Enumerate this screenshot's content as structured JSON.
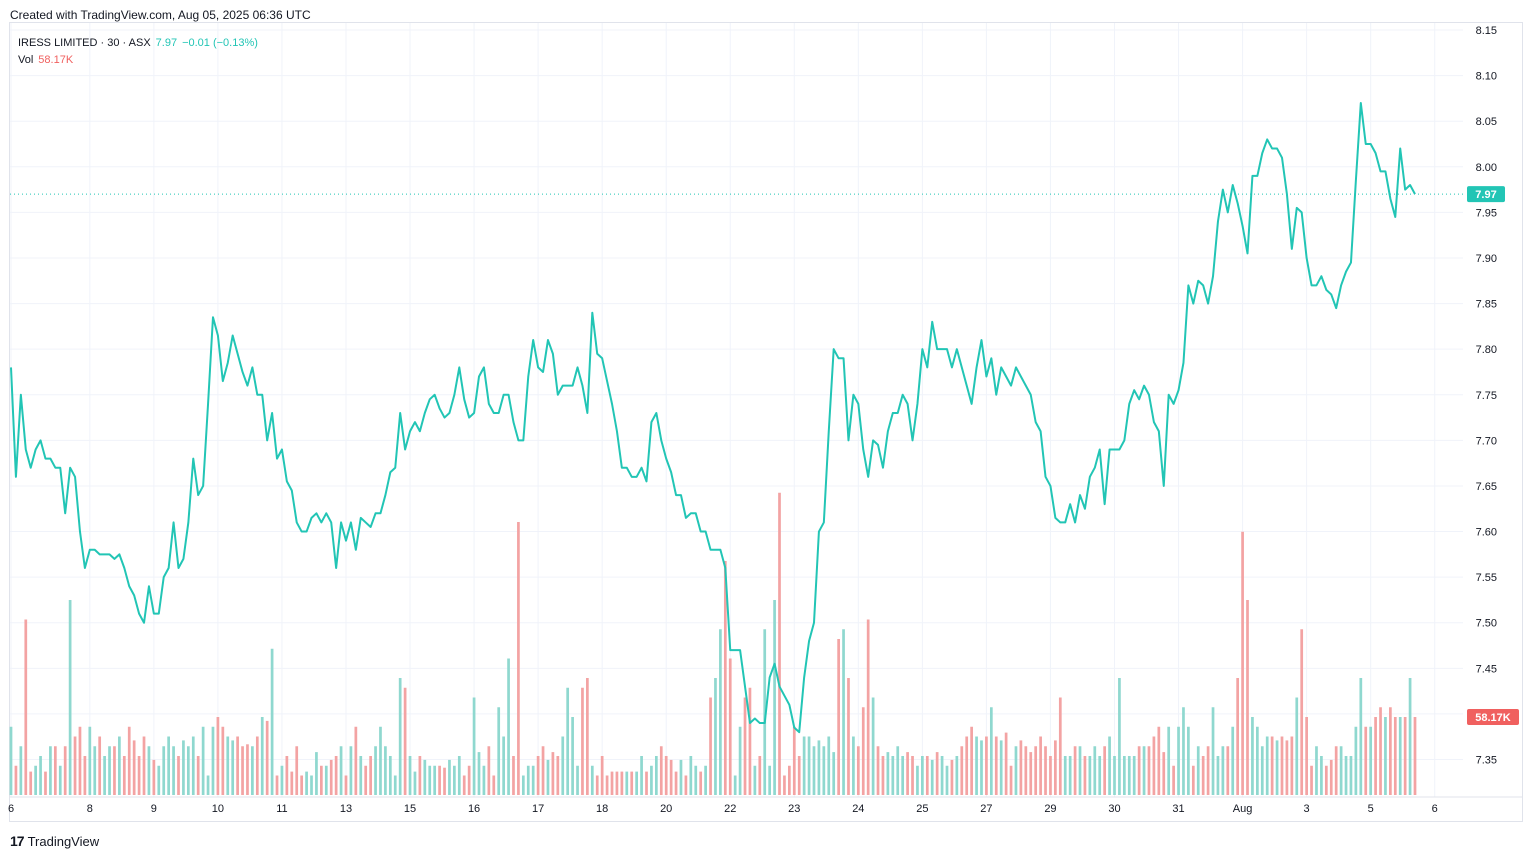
{
  "header": {
    "created_text": "Created with TradingView.com, Aug 05, 2025 06:36 UTC"
  },
  "legend": {
    "symbol": "IRESS LIMITED · 30 · ASX",
    "last": "7.97",
    "change": "−0.01 (−0.13%)",
    "vol_label": "Vol",
    "vol_value": "58.17K"
  },
  "footer": {
    "brand": "TradingView"
  },
  "colors": {
    "line": "#22c5b5",
    "vol_up": "#8fd8cf",
    "vol_down": "#f3a3a3",
    "grid": "#f0f3fa",
    "text": "#131722",
    "price_badge": "#22c5b5",
    "vol_badge": "#f0605f"
  },
  "chart_data": {
    "type": "line",
    "title": "",
    "xlabel": "",
    "ylabel": "",
    "grid": true,
    "y_axis_position": "right",
    "ylim": [
      7.31,
      8.15
    ],
    "yticks": [
      "8.15",
      "8.10",
      "8.05",
      "8.00",
      "7.95",
      "7.90",
      "7.85",
      "7.80",
      "7.75",
      "7.70",
      "7.65",
      "7.60",
      "7.55",
      "7.50",
      "7.45",
      "7.40",
      "7.35"
    ],
    "xticks": [
      {
        "label": "6",
        "i": 0
      },
      {
        "label": "8",
        "i": 16
      },
      {
        "label": "9",
        "i": 29
      },
      {
        "label": "10",
        "i": 42
      },
      {
        "label": "11",
        "i": 55
      },
      {
        "label": "13",
        "i": 68
      },
      {
        "label": "15",
        "i": 81
      },
      {
        "label": "16",
        "i": 94
      },
      {
        "label": "17",
        "i": 107
      },
      {
        "label": "18",
        "i": 120
      },
      {
        "label": "20",
        "i": 133
      },
      {
        "label": "22",
        "i": 146
      },
      {
        "label": "23",
        "i": 159
      },
      {
        "label": "24",
        "i": 172
      },
      {
        "label": "25",
        "i": 185
      },
      {
        "label": "27",
        "i": 198
      },
      {
        "label": "29",
        "i": 211
      },
      {
        "label": "30",
        "i": 224
      },
      {
        "label": "31",
        "i": 237
      },
      {
        "label": "Aug",
        "i": 250
      },
      {
        "label": "3",
        "i": 263
      },
      {
        "label": "5",
        "i": 276
      },
      {
        "label": "6",
        "i": 289
      }
    ],
    "last_price": 7.97,
    "last_price_label": "7.97",
    "last_volume_label": "58.17K",
    "vol_max": 100,
    "series": [
      {
        "kind": "price",
        "values": [
          7.78,
          7.66,
          7.75,
          7.69,
          7.67,
          7.69,
          7.7,
          7.68,
          7.68,
          7.67,
          7.67,
          7.62,
          7.67,
          7.66,
          7.6,
          7.56,
          7.58,
          7.58,
          7.575,
          7.575,
          7.575,
          7.57,
          7.575,
          7.56,
          7.54,
          7.53,
          7.51,
          7.5,
          7.54,
          7.51,
          7.51,
          7.55,
          7.56,
          7.61,
          7.56,
          7.57,
          7.61,
          7.68,
          7.64,
          7.65,
          7.74,
          7.835,
          7.815,
          7.765,
          7.785,
          7.815,
          7.795,
          7.775,
          7.76,
          7.78,
          7.75,
          7.75,
          7.7,
          7.73,
          7.68,
          7.69,
          7.655,
          7.645,
          7.61,
          7.6,
          7.6,
          7.615,
          7.62,
          7.61,
          7.62,
          7.61,
          7.56,
          7.61,
          7.59,
          7.61,
          7.58,
          7.615,
          7.61,
          7.605,
          7.62,
          7.62,
          7.64,
          7.665,
          7.67,
          7.73,
          7.69,
          7.71,
          7.72,
          7.71,
          7.73,
          7.745,
          7.75,
          7.735,
          7.725,
          7.73,
          7.75,
          7.78,
          7.745,
          7.725,
          7.73,
          7.77,
          7.78,
          7.74,
          7.73,
          7.73,
          7.75,
          7.75,
          7.72,
          7.7,
          7.7,
          7.77,
          7.81,
          7.78,
          7.775,
          7.81,
          7.795,
          7.75,
          7.76,
          7.76,
          7.76,
          7.78,
          7.76,
          7.73,
          7.84,
          7.795,
          7.79,
          7.765,
          7.74,
          7.71,
          7.67,
          7.67,
          7.66,
          7.66,
          7.67,
          7.655,
          7.72,
          7.73,
          7.7,
          7.68,
          7.665,
          7.64,
          7.64,
          7.615,
          7.62,
          7.62,
          7.6,
          7.6,
          7.58,
          7.58,
          7.58,
          7.56,
          7.47,
          7.47,
          7.47,
          7.43,
          7.39,
          7.395,
          7.39,
          7.39,
          7.44,
          7.455,
          7.43,
          7.42,
          7.41,
          7.385,
          7.38,
          7.44,
          7.48,
          7.5,
          7.6,
          7.61,
          7.71,
          7.8,
          7.79,
          7.79,
          7.7,
          7.75,
          7.74,
          7.69,
          7.66,
          7.7,
          7.695,
          7.67,
          7.71,
          7.73,
          7.73,
          7.75,
          7.74,
          7.7,
          7.74,
          7.8,
          7.78,
          7.83,
          7.8,
          7.8,
          7.8,
          7.78,
          7.8,
          7.78,
          7.76,
          7.74,
          7.78,
          7.81,
          7.77,
          7.79,
          7.75,
          7.78,
          7.77,
          7.76,
          7.78,
          7.77,
          7.76,
          7.75,
          7.72,
          7.71,
          7.66,
          7.65,
          7.615,
          7.61,
          7.61,
          7.63,
          7.61,
          7.64,
          7.625,
          7.66,
          7.67,
          7.69,
          7.63,
          7.69,
          7.69,
          7.69,
          7.7,
          7.74,
          7.755,
          7.745,
          7.76,
          7.75,
          7.72,
          7.71,
          7.65,
          7.75,
          7.74,
          7.755,
          7.785,
          7.87,
          7.85,
          7.875,
          7.87,
          7.85,
          7.88,
          7.94,
          7.975,
          7.95,
          7.98,
          7.96,
          7.935,
          7.905,
          7.99,
          7.99,
          8.015,
          8.03,
          8.02,
          8.02,
          8.01,
          7.97,
          7.91,
          7.955,
          7.95,
          7.9,
          7.87,
          7.87,
          7.88,
          7.865,
          7.86,
          7.845,
          7.87,
          7.885,
          7.895,
          7.985,
          8.07,
          8.025,
          8.025,
          8.015,
          7.995,
          7.995,
          7.965,
          7.945,
          8.02,
          7.975,
          7.98,
          7.97
        ]
      },
      {
        "kind": "volume",
        "values": [
          35,
          15,
          25,
          90,
          12,
          15,
          20,
          12,
          25,
          25,
          15,
          25,
          100,
          30,
          35,
          20,
          35,
          25,
          30,
          20,
          25,
          25,
          30,
          20,
          35,
          28,
          20,
          30,
          25,
          18,
          15,
          25,
          30,
          25,
          20,
          28,
          25,
          30,
          20,
          35,
          10,
          35,
          40,
          35,
          30,
          28,
          30,
          25,
          26,
          25,
          30,
          40,
          38,
          75,
          10,
          15,
          20,
          12,
          25,
          10,
          12,
          10,
          22,
          15,
          15,
          18,
          20,
          25,
          10,
          25,
          35,
          20,
          15,
          20,
          25,
          35,
          25,
          20,
          10,
          60,
          55,
          20,
          12,
          20,
          18,
          15,
          15,
          15,
          14,
          18,
          15,
          20,
          10,
          15,
          50,
          22,
          15,
          25,
          10,
          45,
          30,
          70,
          20,
          140,
          10,
          15,
          15,
          20,
          25,
          18,
          22,
          20,
          30,
          55,
          40,
          15,
          55,
          60,
          15,
          10,
          20,
          10,
          12,
          12,
          12,
          12,
          12,
          12,
          20,
          12,
          15,
          20,
          25,
          20,
          18,
          12,
          18,
          10,
          20,
          15,
          12,
          15,
          50,
          60,
          85,
          120,
          70,
          10,
          35,
          50,
          55,
          15,
          20,
          85,
          15,
          100,
          155,
          10,
          15,
          35,
          20,
          30,
          30,
          25,
          28,
          25,
          30,
          22,
          80,
          85,
          60,
          30,
          25,
          45,
          90,
          50,
          25,
          20,
          22,
          20,
          25,
          20,
          22,
          20,
          15,
          20,
          20,
          18,
          22,
          20,
          15,
          18,
          20,
          25,
          30,
          35,
          30,
          28,
          30,
          45,
          30,
          28,
          32,
          15,
          25,
          28,
          25,
          22,
          25,
          30,
          25,
          20,
          28,
          50,
          20,
          20,
          25,
          25,
          20,
          20,
          25,
          20,
          25,
          30,
          20,
          60,
          20,
          20,
          20,
          25,
          25,
          25,
          30,
          35,
          22,
          35,
          15,
          35,
          45,
          35,
          15,
          25,
          20,
          25,
          45,
          20,
          25,
          25,
          35,
          60,
          135,
          100,
          40,
          35,
          25,
          30,
          30,
          28,
          30,
          28,
          30,
          50,
          85,
          40,
          15,
          25,
          20,
          15,
          18,
          25,
          25,
          20,
          20,
          35,
          60,
          35,
          35,
          40,
          45,
          40,
          45,
          40,
          40,
          40,
          60,
          40,
          40,
          55
        ]
      }
    ]
  }
}
